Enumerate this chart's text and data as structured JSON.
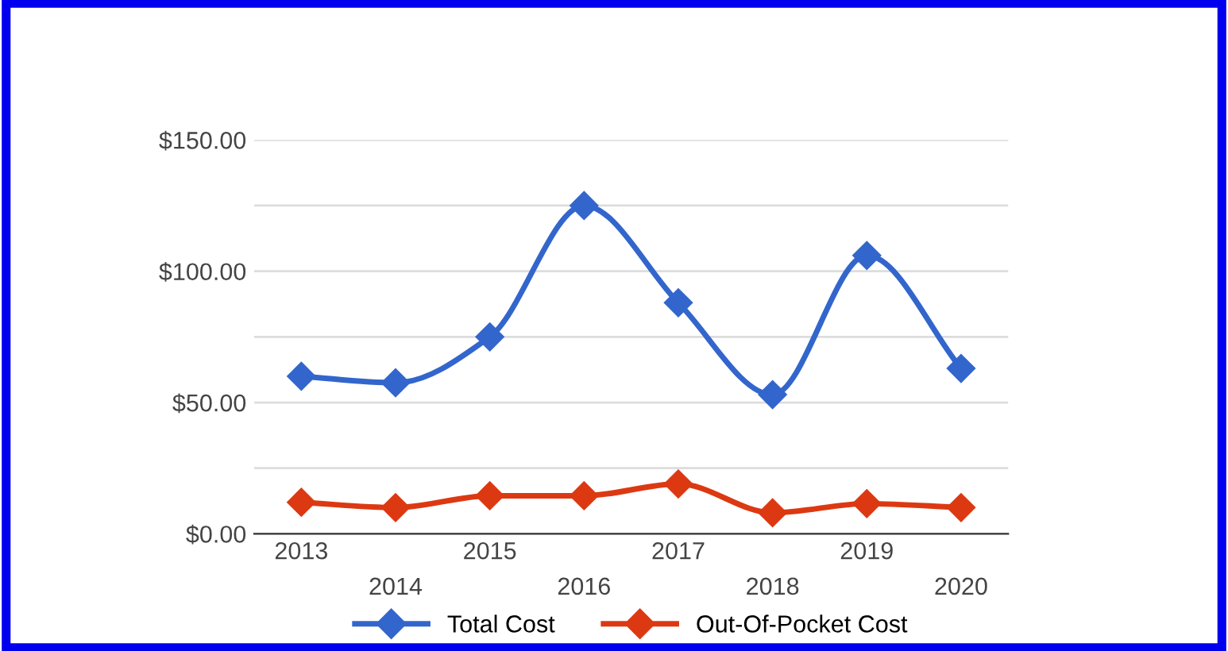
{
  "chart_data": {
    "type": "line",
    "categories": [
      "2013",
      "2014",
      "2015",
      "2016",
      "2017",
      "2018",
      "2019",
      "2020"
    ],
    "series": [
      {
        "name": "Total Cost",
        "color": "#3366cc",
        "values": [
          60,
          57.5,
          75,
          125,
          88,
          53,
          106,
          63
        ]
      },
      {
        "name": "Out-Of-Pocket Cost",
        "color": "#dc3912",
        "values": [
          12,
          10,
          14.5,
          14.5,
          19,
          8,
          11.5,
          10
        ]
      }
    ],
    "ylim": [
      0,
      150
    ],
    "yticks": [
      {
        "value": 0,
        "label": "$0.00"
      },
      {
        "value": 25,
        "label": null
      },
      {
        "value": 50,
        "label": "$50.00"
      },
      {
        "value": 75,
        "label": null
      },
      {
        "value": 100,
        "label": "$100.00"
      },
      {
        "value": 125,
        "label": null
      },
      {
        "value": 150,
        "label": "$150.00"
      }
    ],
    "grid": "y",
    "legend": "bottom",
    "marker": "diamond",
    "line_style": "solid"
  }
}
